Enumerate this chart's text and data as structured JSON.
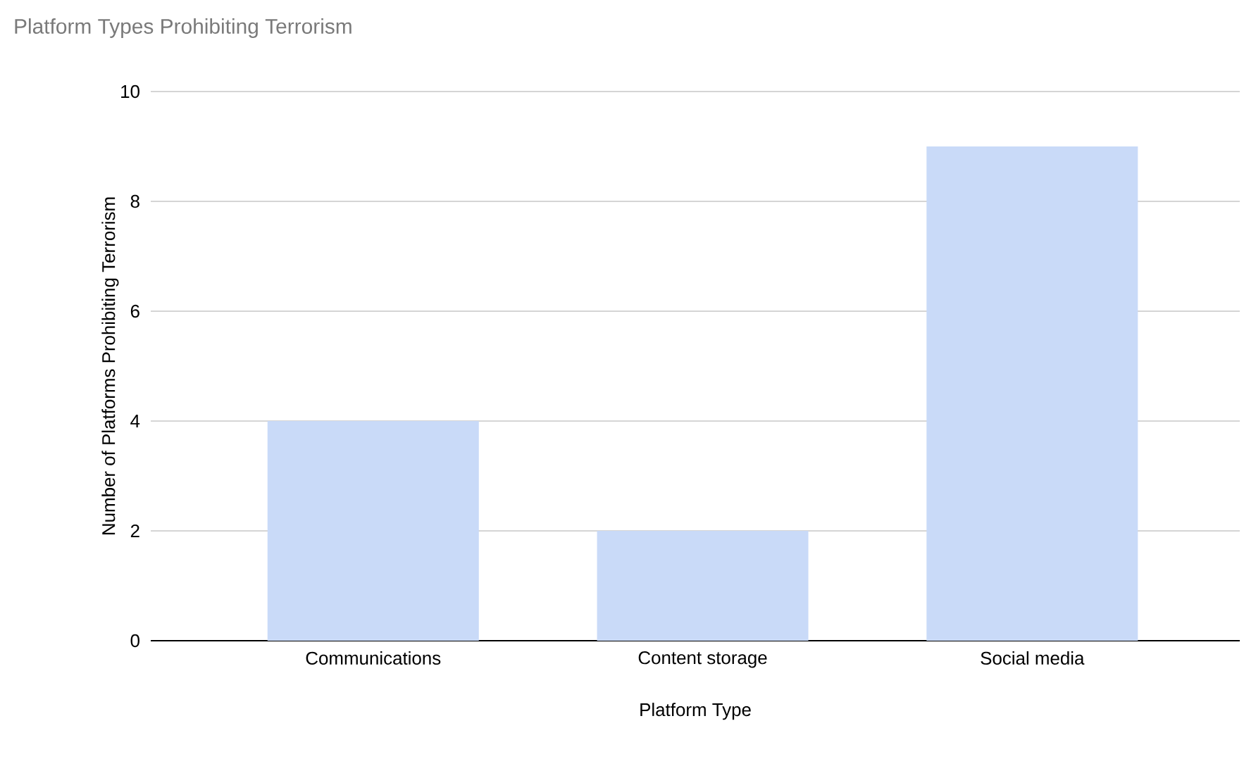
{
  "chart_data": {
    "type": "bar",
    "title": "Platform Types Prohibiting Terrorism",
    "xlabel": "Platform Type",
    "ylabel": "Number of Platforms Prohibiting Terrorism",
    "categories": [
      "Communications",
      "Content storage",
      "Social media"
    ],
    "values": [
      4,
      2,
      9
    ],
    "color": "#c9daf8",
    "ylim": [
      0,
      10
    ],
    "yticks": [
      0,
      2,
      4,
      6,
      8,
      10
    ],
    "grid": "y"
  }
}
